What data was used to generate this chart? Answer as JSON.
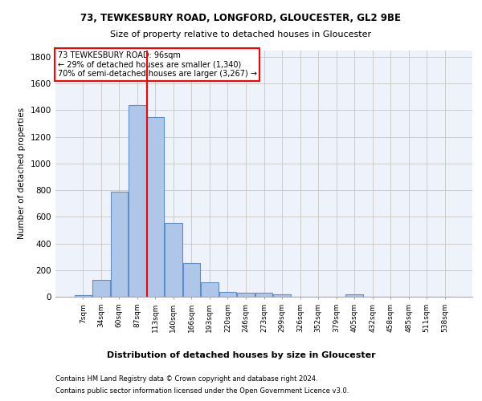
{
  "title1": "73, TEWKESBURY ROAD, LONGFORD, GLOUCESTER, GL2 9BE",
  "title2": "Size of property relative to detached houses in Gloucester",
  "xlabel": "Distribution of detached houses by size in Gloucester",
  "ylabel": "Number of detached properties",
  "footer1": "Contains HM Land Registry data © Crown copyright and database right 2024.",
  "footer2": "Contains public sector information licensed under the Open Government Licence v3.0.",
  "annotation_line1": "73 TEWKESBURY ROAD: 96sqm",
  "annotation_line2": "← 29% of detached houses are smaller (1,340)",
  "annotation_line3": "70% of semi-detached houses are larger (3,267) →",
  "bar_labels": [
    "7sqm",
    "34sqm",
    "60sqm",
    "87sqm",
    "113sqm",
    "140sqm",
    "166sqm",
    "193sqm",
    "220sqm",
    "246sqm",
    "273sqm",
    "299sqm",
    "326sqm",
    "352sqm",
    "379sqm",
    "405sqm",
    "432sqm",
    "458sqm",
    "485sqm",
    "511sqm",
    "538sqm"
  ],
  "bar_values": [
    10,
    125,
    790,
    1440,
    1345,
    555,
    250,
    110,
    35,
    30,
    30,
    20,
    0,
    0,
    0,
    20,
    0,
    0,
    0,
    0,
    0
  ],
  "bar_color": "#aec6e8",
  "bar_edge_color": "#5b8fc9",
  "vline_x": 3.53,
  "vline_color": "red",
  "ylim": [
    0,
    1850
  ],
  "yticks": [
    0,
    200,
    400,
    600,
    800,
    1000,
    1200,
    1400,
    1600,
    1800
  ],
  "grid_color": "#cccccc",
  "background_color": "#eef2fb",
  "annotation_box_color": "red"
}
